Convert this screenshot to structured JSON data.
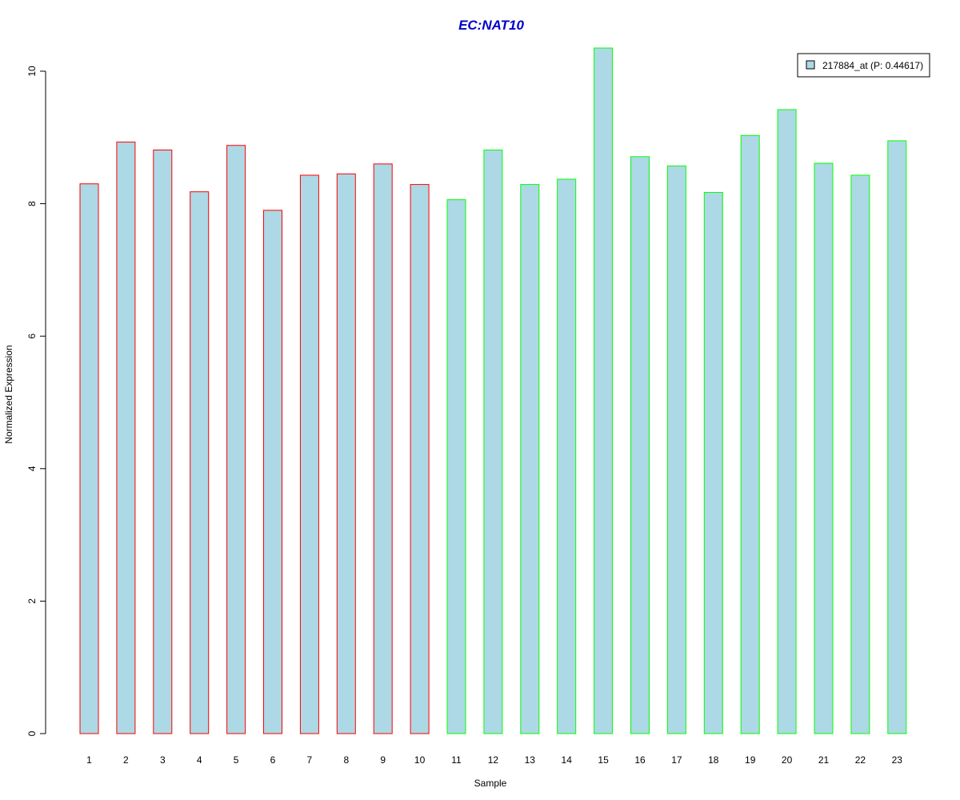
{
  "chart_data": {
    "type": "bar",
    "title": "EC:NAT10",
    "xlabel": "Sample",
    "ylabel": "Normalized Expression",
    "categories": [
      "1",
      "2",
      "3",
      "4",
      "5",
      "6",
      "7",
      "8",
      "9",
      "10",
      "11",
      "12",
      "13",
      "14",
      "15",
      "16",
      "17",
      "18",
      "19",
      "20",
      "21",
      "22",
      "23"
    ],
    "series": [
      {
        "name": "217884_at (P: 0.44617)",
        "values": [
          8.3,
          8.93,
          8.81,
          8.18,
          8.88,
          7.9,
          8.43,
          8.45,
          8.6,
          8.29,
          8.06,
          8.81,
          8.29,
          8.37,
          10.35,
          8.71,
          8.57,
          8.17,
          9.03,
          9.42,
          8.61,
          8.43,
          8.95
        ]
      }
    ],
    "groups": [
      {
        "samples": [
          1,
          10
        ],
        "border_color": "#ff0000"
      },
      {
        "samples": [
          11,
          23
        ],
        "border_color": "#00ff00"
      }
    ],
    "yticks": [
      0,
      2,
      4,
      6,
      8,
      10
    ],
    "ylim": [
      0,
      10.35
    ],
    "grid": false,
    "legend_position": "top-right"
  },
  "colors": {
    "bar_fill": "#add8e6",
    "title": "#0000cc",
    "axis": "#000000"
  }
}
